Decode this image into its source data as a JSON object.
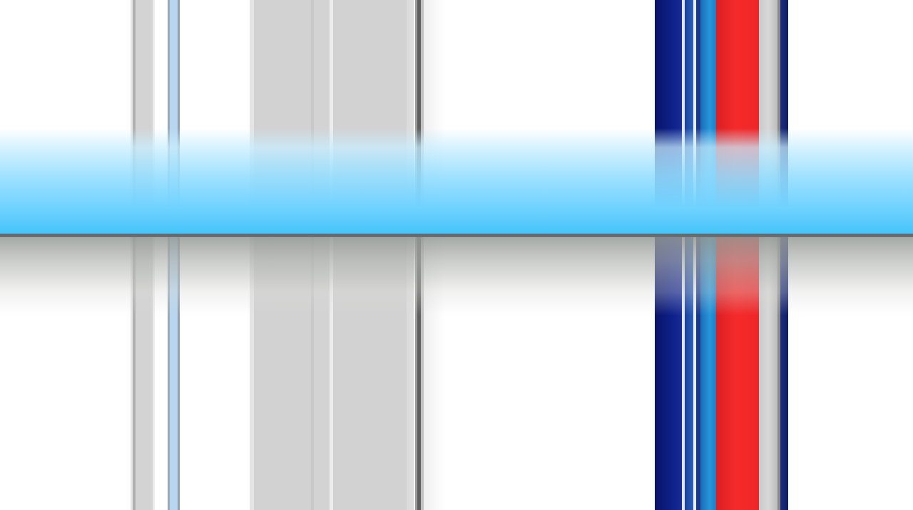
{
  "scene": {
    "stripe_colors": {
      "light_gray": "#d3d3d3",
      "mid_gray": "#b9b9b9",
      "dark_gray": "#6e6e6e",
      "pale_blue": "#b8d6ee",
      "navy": "#0b1873",
      "blue": "#1f5fb0",
      "cyan": "#1e8fd0",
      "red": "#f02a2a"
    },
    "band_colors": {
      "glow": "#6fd2ff",
      "edge": "#5a6a72",
      "shadow": "#a8aca8"
    }
  }
}
